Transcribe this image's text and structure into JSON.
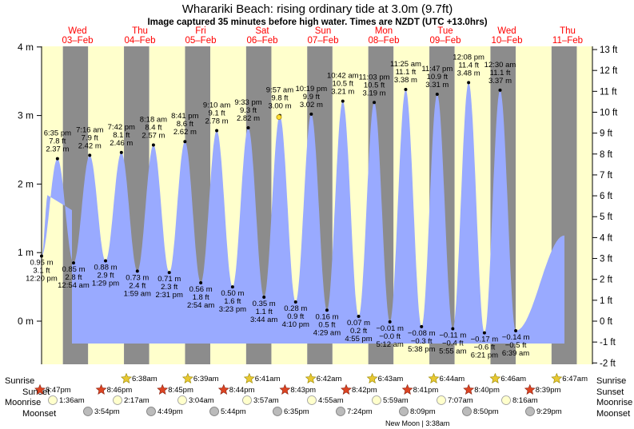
{
  "chart_data": {
    "type": "area",
    "title": "Wharariki Beach: rising  ordinary tide at 3.0m (9.7ft)",
    "subtitle": "Image captured 35 minutes before high water. Times are NZDT (UTC +13.0hrs)",
    "ylim_m": [
      -0.3,
      4.0
    ],
    "ylim_ft": [
      -2,
      13
    ],
    "y_ticks_m": [
      {
        "v": 0,
        "label": "0 m"
      },
      {
        "v": 1,
        "label": "1 m"
      },
      {
        "v": 2,
        "label": "2 m"
      },
      {
        "v": 3,
        "label": "3 m"
      },
      {
        "v": 4,
        "label": "4 m"
      }
    ],
    "y_ticks_ft": [
      {
        "v": -2,
        "label": "-2 ft"
      },
      {
        "v": -1,
        "label": "-1 ft"
      },
      {
        "v": 0,
        "label": "0 ft"
      },
      {
        "v": 1,
        "label": "1 ft"
      },
      {
        "v": 2,
        "label": "2 ft"
      },
      {
        "v": 3,
        "label": "3 ft"
      },
      {
        "v": 4,
        "label": "4 ft"
      },
      {
        "v": 5,
        "label": "5 ft"
      },
      {
        "v": 6,
        "label": "6 ft"
      },
      {
        "v": 7,
        "label": "7 ft"
      },
      {
        "v": 8,
        "label": "8 ft"
      },
      {
        "v": 9,
        "label": "9 ft"
      },
      {
        "v": 10,
        "label": "10 ft"
      },
      {
        "v": 11,
        "label": "11 ft"
      },
      {
        "v": 12,
        "label": "12 ft"
      },
      {
        "v": 13,
        "label": "13 ft"
      }
    ],
    "days": [
      {
        "name": "Wed",
        "date": "03–Feb"
      },
      {
        "name": "Thu",
        "date": "04–Feb"
      },
      {
        "name": "Fri",
        "date": "05–Feb"
      },
      {
        "name": "Sat",
        "date": "06–Feb"
      },
      {
        "name": "Sun",
        "date": "07–Feb"
      },
      {
        "name": "Mon",
        "date": "08–Feb"
      },
      {
        "name": "Tue",
        "date": "09–Feb"
      },
      {
        "name": "Wed",
        "date": "10–Feb"
      },
      {
        "name": "Thu",
        "date": "11–Feb"
      }
    ],
    "tides": [
      {
        "time": "12:20 pm",
        "m": 0.95,
        "m_label": "0.95 m",
        "ft_label": "3.1 ft",
        "type": "low"
      },
      {
        "time": "6:35 pm",
        "m": 2.37,
        "m_label": "2.37 m",
        "ft_label": "7.8 ft",
        "type": "high"
      },
      {
        "time": "12:54 am",
        "m": 0.85,
        "m_label": "0.85 m",
        "ft_label": "2.8 ft",
        "type": "low"
      },
      {
        "time": "7:16 am",
        "m": 2.42,
        "m_label": "2.42 m",
        "ft_label": "7.9 ft",
        "type": "high"
      },
      {
        "time": "1:29 pm",
        "m": 0.88,
        "m_label": "0.88 m",
        "ft_label": "2.9 ft",
        "type": "low"
      },
      {
        "time": "7:42 pm",
        "m": 2.46,
        "m_label": "2.46 m",
        "ft_label": "8.1 ft",
        "type": "high"
      },
      {
        "time": "1:59 am",
        "m": 0.73,
        "m_label": "0.73 m",
        "ft_label": "2.4 ft",
        "type": "low"
      },
      {
        "time": "8:18 am",
        "m": 2.57,
        "m_label": "2.57 m",
        "ft_label": "8.4 ft",
        "type": "high"
      },
      {
        "time": "2:31 pm",
        "m": 0.71,
        "m_label": "0.71 m",
        "ft_label": "2.3 ft",
        "type": "low"
      },
      {
        "time": "8:41 pm",
        "m": 2.62,
        "m_label": "2.62 m",
        "ft_label": "8.6 ft",
        "type": "high"
      },
      {
        "time": "2:54 am",
        "m": 0.56,
        "m_label": "0.56 m",
        "ft_label": "1.8 ft",
        "type": "low"
      },
      {
        "time": "9:10 am",
        "m": 2.78,
        "m_label": "2.78 m",
        "ft_label": "9.1 ft",
        "type": "high"
      },
      {
        "time": "3:23 pm",
        "m": 0.5,
        "m_label": "0.50 m",
        "ft_label": "1.6 ft",
        "type": "low"
      },
      {
        "time": "9:33 pm",
        "m": 2.82,
        "m_label": "2.82 m",
        "ft_label": "9.3 ft",
        "type": "high"
      },
      {
        "time": "3:44 am",
        "m": 0.35,
        "m_label": "0.35 m",
        "ft_label": "1.1 ft",
        "type": "low"
      },
      {
        "time": "9:57 am",
        "m": 3.0,
        "m_label": "3.00 m",
        "ft_label": "9.8 ft",
        "type": "high"
      },
      {
        "time": "4:10 pm",
        "m": 0.28,
        "m_label": "0.28 m",
        "ft_label": "0.9 ft",
        "type": "low"
      },
      {
        "time": "10:19 pm",
        "m": 3.02,
        "m_label": "3.02 m",
        "ft_label": "9.9 ft",
        "type": "high"
      },
      {
        "time": "4:29 am",
        "m": 0.16,
        "m_label": "0.16 m",
        "ft_label": "0.5 ft",
        "type": "low"
      },
      {
        "time": "10:42 am",
        "m": 3.21,
        "m_label": "3.21 m",
        "ft_label": "10.5 ft",
        "type": "high"
      },
      {
        "time": "4:55 pm",
        "m": 0.07,
        "m_label": "0.07 m",
        "ft_label": "0.2 ft",
        "type": "low"
      },
      {
        "time": "11:03 pm",
        "m": 3.19,
        "m_label": "3.19 m",
        "ft_label": "10.5 ft",
        "type": "high"
      },
      {
        "time": "5:12 am",
        "m": -0.01,
        "m_label": "−0.01 m",
        "ft_label": "−0.0 ft",
        "type": "low"
      },
      {
        "time": "11:25 am",
        "m": 3.38,
        "m_label": "3.38 m",
        "ft_label": "11.1 ft",
        "type": "high"
      },
      {
        "time": "5:38 pm",
        "m": -0.08,
        "m_label": "−0.08 m",
        "ft_label": "−0.3 ft",
        "type": "low"
      },
      {
        "time": "11:47 pm",
        "m": 3.31,
        "m_label": "3.31 m",
        "ft_label": "10.9 ft",
        "type": "high"
      },
      {
        "time": "5:55 am",
        "m": -0.11,
        "m_label": "−0.11 m",
        "ft_label": "−0.4 ft",
        "type": "low"
      },
      {
        "time": "12:08 pm",
        "m": 3.48,
        "m_label": "3.48 m",
        "ft_label": "11.4 ft",
        "type": "high"
      },
      {
        "time": "6:21 pm",
        "m": -0.17,
        "m_label": "−0.17 m",
        "ft_label": "−0.6 ft",
        "type": "low"
      },
      {
        "time": "12:30 am",
        "m": 3.37,
        "m_label": "3.37 m",
        "ft_label": "11.1 ft",
        "type": "high"
      },
      {
        "time": "6:39 am",
        "m": -0.14,
        "m_label": "−0.14 m",
        "ft_label": "−0.5 ft",
        "type": "low"
      }
    ],
    "current_level_m": 3.0,
    "legend": {
      "sunrise": "Sunrise",
      "sunset": "Sunset",
      "moonrise": "Moonrise",
      "moonset": "Moonset"
    },
    "sunrise": [
      "6:38am",
      "6:39am",
      "6:41am",
      "6:42am",
      "6:43am",
      "6:44am",
      "6:46am",
      "6:47am"
    ],
    "sunset": [
      "8:47pm",
      "8:46pm",
      "8:45pm",
      "8:44pm",
      "8:43pm",
      "8:42pm",
      "8:41pm",
      "8:40pm",
      "8:39pm"
    ],
    "moonrise": [
      "1:36am",
      "2:17am",
      "3:04am",
      "3:57am",
      "4:55am",
      "5:59am",
      "7:07am",
      "8:16am"
    ],
    "moonset": [
      "3:54pm",
      "4:49pm",
      "5:44pm",
      "6:35pm",
      "7:24pm",
      "8:09pm",
      "8:50pm",
      "9:29pm"
    ],
    "new_moon": "New Moon | 3:38am",
    "colors": {
      "night": "#8c8c8c",
      "day": "#ffffcc",
      "water": "#99aaff",
      "day_label": "#ff0000",
      "sunrise": "#e8c832",
      "sunset": "#dd4422",
      "moonrise": "#ffffcc",
      "moonset": "#bbbbbb"
    }
  }
}
